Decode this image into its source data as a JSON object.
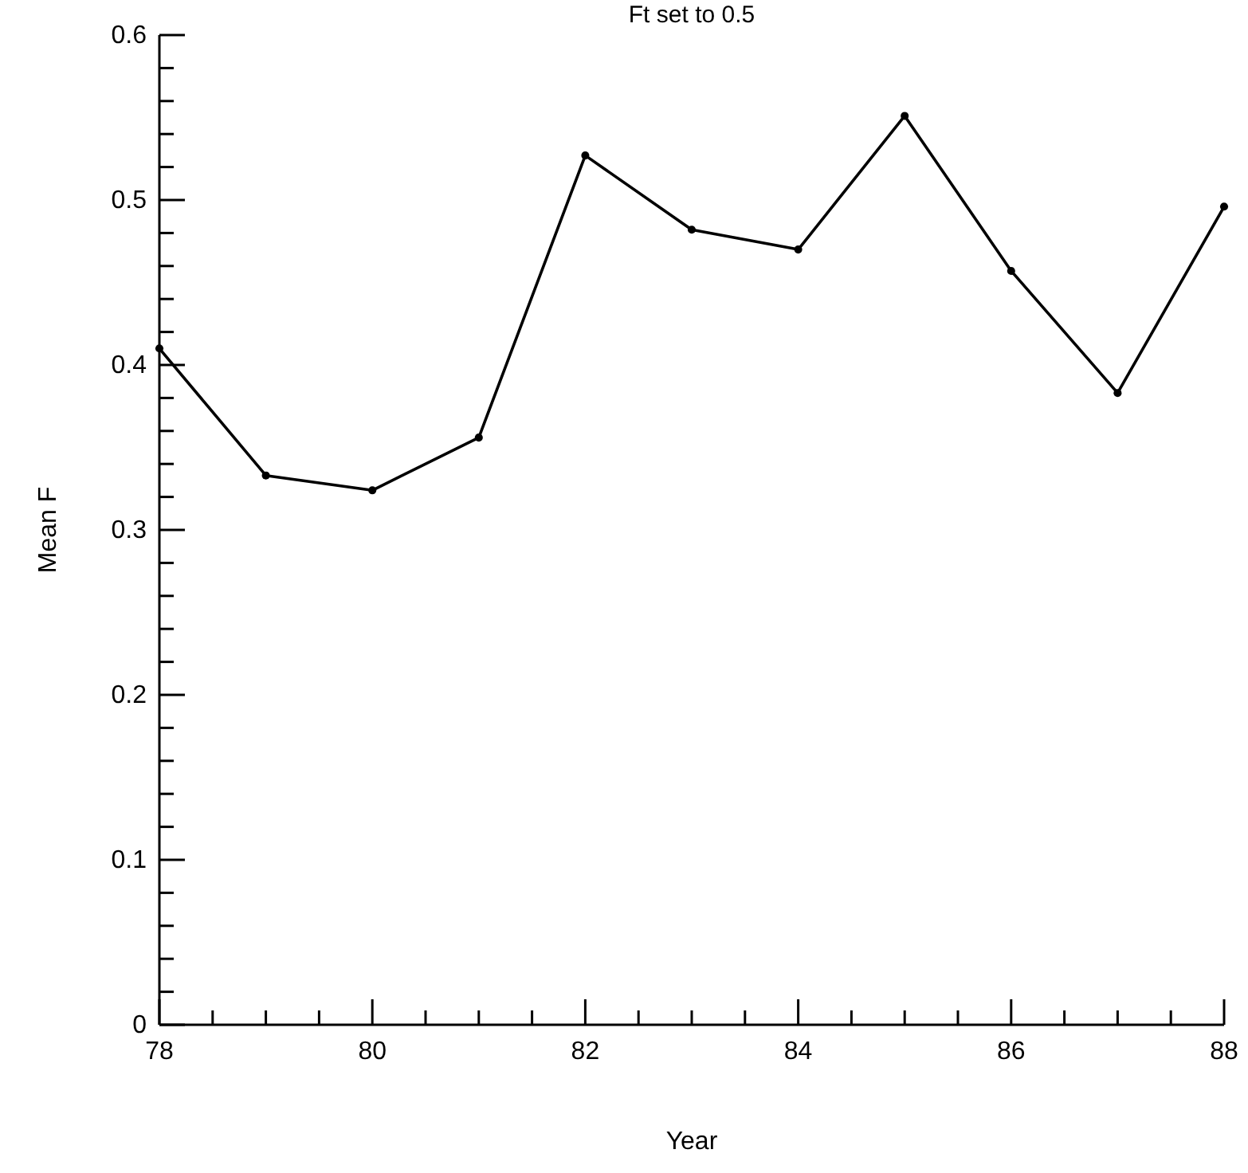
{
  "chart_data": {
    "type": "line",
    "title": "Ft set to 0.5",
    "xlabel": "Year",
    "ylabel": "Mean F",
    "x": [
      78,
      79,
      80,
      81,
      82,
      83,
      84,
      85,
      86,
      87,
      88
    ],
    "series": [
      {
        "color": "#000000",
        "values": [
          0.41,
          0.333,
          0.324,
          0.356,
          0.527,
          0.482,
          0.47,
          0.551,
          0.457,
          0.383,
          0.496
        ]
      }
    ],
    "xlim": [
      78,
      88
    ],
    "ylim": [
      0,
      0.6
    ],
    "xticks": [
      78,
      {
        "value": 78.5,
        "label": null
      },
      {
        "value": 79,
        "label": null
      },
      {
        "value": 79.5,
        "label": null
      },
      80,
      {
        "value": 80.5,
        "label": null
      },
      {
        "value": 81,
        "label": null
      },
      {
        "value": 81.5,
        "label": null
      },
      82,
      {
        "value": 82.5,
        "label": null
      },
      {
        "value": 83,
        "label": null
      },
      {
        "value": 83.5,
        "label": null
      },
      84,
      {
        "value": 84.5,
        "label": null
      },
      {
        "value": 85,
        "label": null
      },
      {
        "value": 85.5,
        "label": null
      },
      86,
      {
        "value": 86.5,
        "label": null
      },
      {
        "value": 87,
        "label": null
      },
      {
        "value": 87.5,
        "label": null
      },
      88
    ],
    "yticks": [
      0,
      {
        "value": 0.02,
        "label": null
      },
      {
        "value": 0.04,
        "label": null
      },
      {
        "value": 0.06,
        "label": null
      },
      {
        "value": 0.08,
        "label": null
      },
      0.1,
      {
        "value": 0.12,
        "label": null
      },
      {
        "value": 0.14,
        "label": null
      },
      {
        "value": 0.16,
        "label": null
      },
      {
        "value": 0.18,
        "label": null
      },
      0.2,
      {
        "value": 0.22,
        "label": null
      },
      {
        "value": 0.24,
        "label": null
      },
      {
        "value": 0.26,
        "label": null
      },
      {
        "value": 0.28,
        "label": null
      },
      0.3,
      {
        "value": 0.32,
        "label": null
      },
      {
        "value": 0.34,
        "label": null
      },
      {
        "value": 0.36,
        "label": null
      },
      {
        "value": 0.38,
        "label": null
      },
      0.4,
      {
        "value": 0.42,
        "label": null
      },
      {
        "value": 0.44,
        "label": null
      },
      {
        "value": 0.46,
        "label": null
      },
      {
        "value": 0.48,
        "label": null
      },
      0.5,
      {
        "value": 0.52,
        "label": null
      },
      {
        "value": 0.54,
        "label": null
      },
      {
        "value": 0.56,
        "label": null
      },
      {
        "value": 0.58,
        "label": null
      },
      0.6
    ],
    "grid": false,
    "marker": "circle",
    "line_style": "solid"
  }
}
